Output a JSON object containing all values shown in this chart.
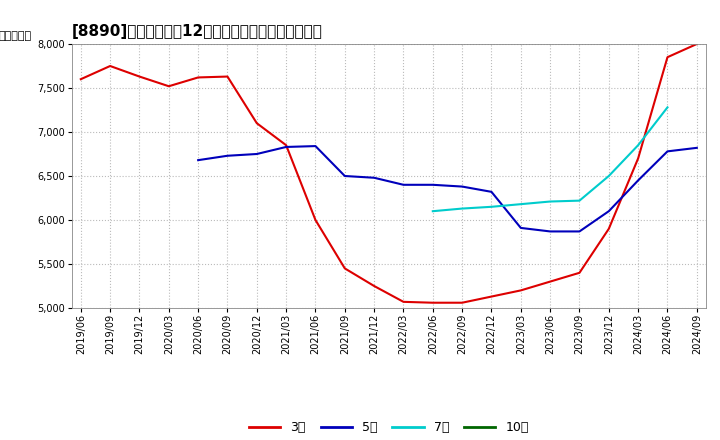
{
  "title": "[8890]　当期純利益12か月移動合計の平均値の推移",
  "ylabel": "（百万円）",
  "ylim": [
    5000,
    8000
  ],
  "yticks": [
    5000,
    5500,
    6000,
    6500,
    7000,
    7500,
    8000
  ],
  "background_color": "#ffffff",
  "plot_bg_color": "#ffffff",
  "grid_color": "#bbbbbb",
  "line_3yr_color": "#dd0000",
  "line_5yr_color": "#0000bb",
  "line_7yr_color": "#00cccc",
  "line_10yr_color": "#006600",
  "x_dates": [
    "2019/06",
    "2019/09",
    "2019/12",
    "2020/03",
    "2020/06",
    "2020/09",
    "2020/12",
    "2021/03",
    "2021/06",
    "2021/09",
    "2021/12",
    "2022/03",
    "2022/06",
    "2022/09",
    "2022/12",
    "2023/03",
    "2023/06",
    "2023/09",
    "2023/12",
    "2024/03",
    "2024/06",
    "2024/09"
  ],
  "y_3yr": [
    7600,
    7750,
    7630,
    7520,
    7620,
    7630,
    7100,
    6850,
    6000,
    5450,
    5250,
    5070,
    5060,
    5060,
    5130,
    5200,
    5300,
    5400,
    5900,
    6700,
    7850,
    8000
  ],
  "y_5yr": [
    null,
    null,
    null,
    null,
    6680,
    6730,
    6750,
    6830,
    6840,
    6500,
    6480,
    6400,
    6400,
    6380,
    6320,
    5910,
    5870,
    5870,
    6100,
    6450,
    6780,
    6820
  ],
  "y_7yr": [
    null,
    null,
    null,
    null,
    null,
    null,
    null,
    null,
    null,
    null,
    null,
    null,
    6100,
    6130,
    6150,
    6180,
    6210,
    6220,
    6500,
    6850,
    7280,
    null
  ],
  "y_10yr": [
    null,
    null,
    null,
    null,
    null,
    null,
    null,
    null,
    null,
    null,
    null,
    null,
    null,
    null,
    null,
    null,
    null,
    null,
    null,
    null,
    null,
    null
  ],
  "legend_labels": [
    "3年",
    "5年",
    "7年",
    "10年"
  ],
  "title_fontsize": 11,
  "tick_fontsize": 7,
  "ylabel_fontsize": 8
}
